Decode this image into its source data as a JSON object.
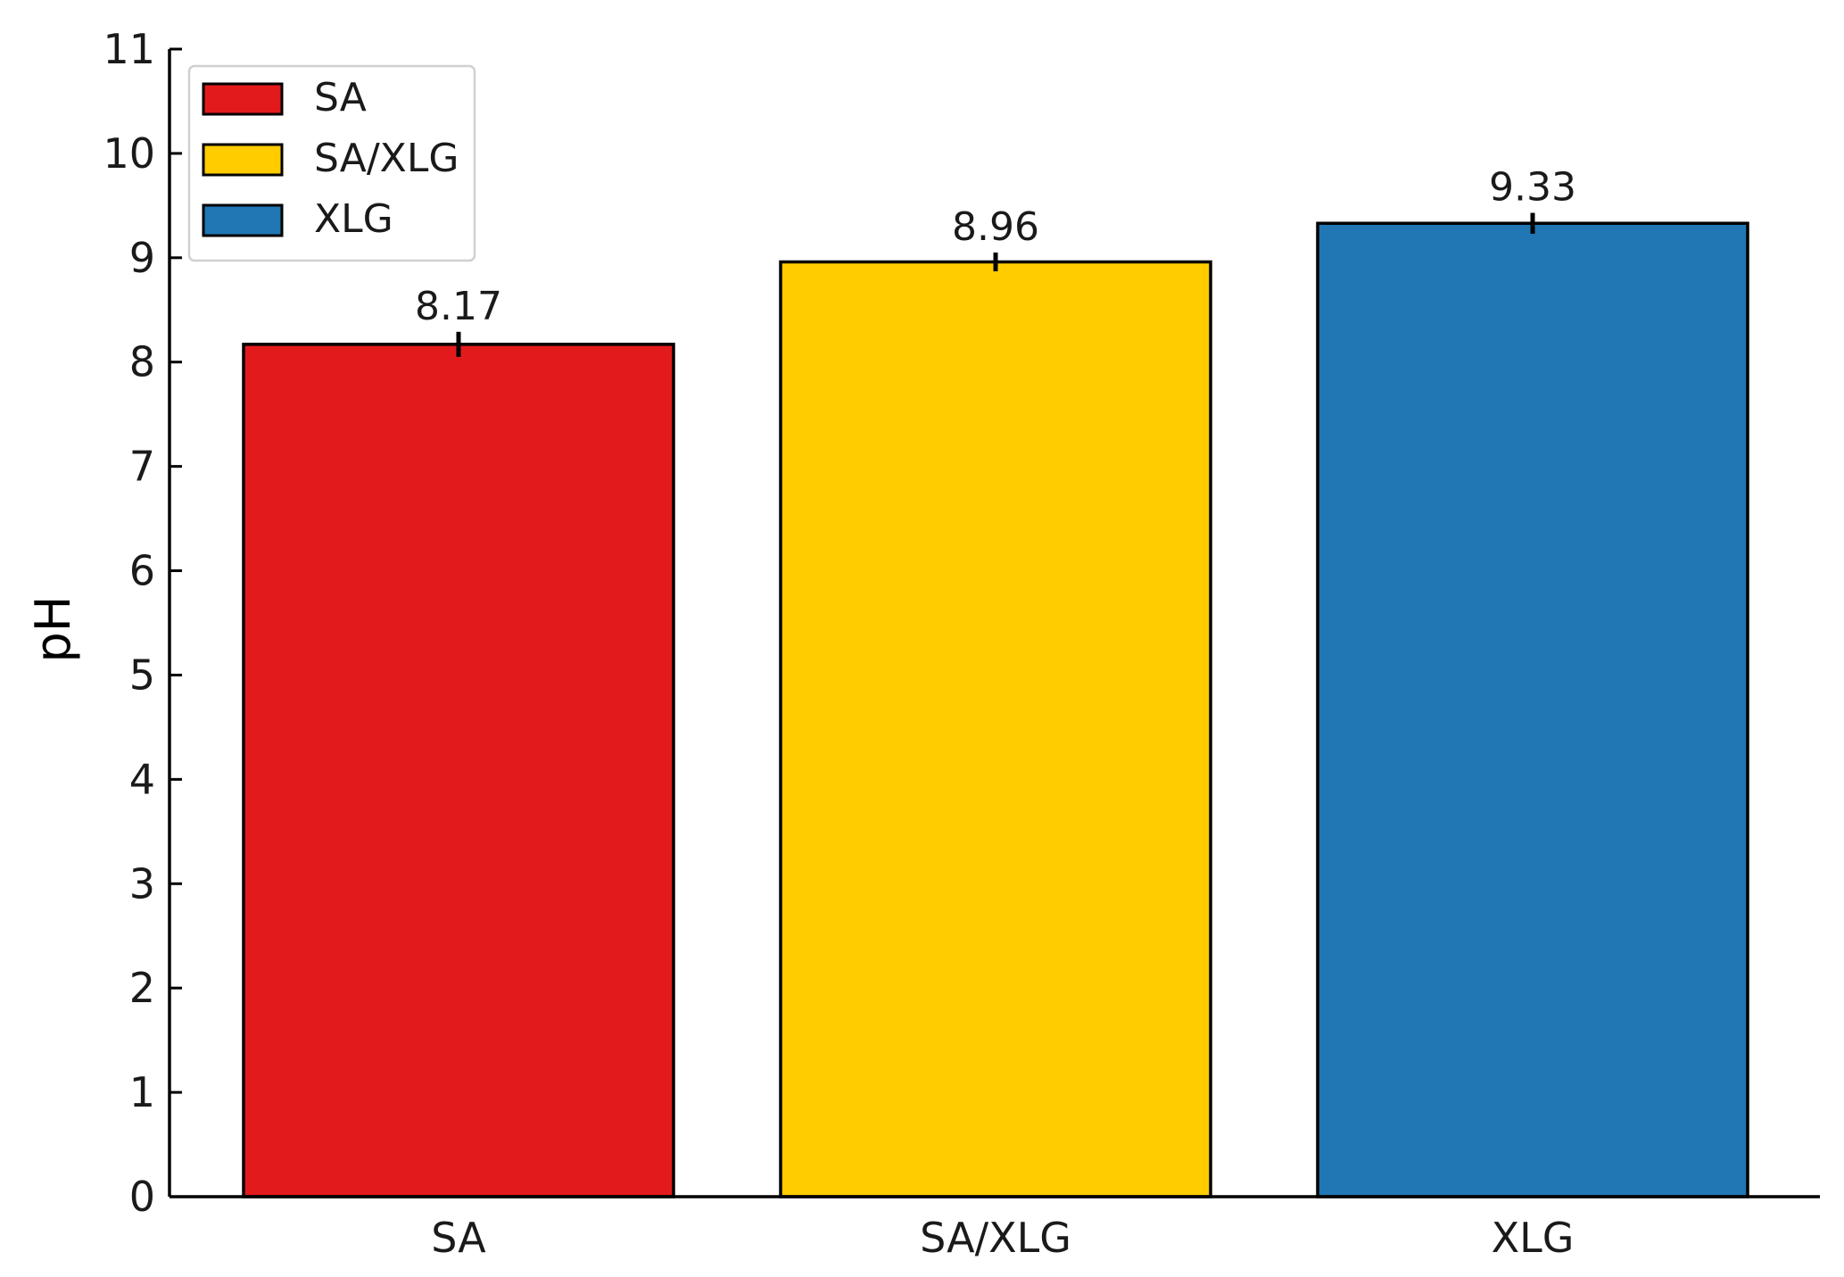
{
  "chart_data": {
    "type": "bar",
    "categories": [
      "SA",
      "SA/XLG",
      "XLG"
    ],
    "values": [
      8.17,
      8.96,
      9.33
    ],
    "errors": [
      0.12,
      0.09,
      0.1
    ],
    "value_labels": [
      "8.17",
      "8.96",
      "9.33"
    ],
    "colors": [
      "#e31a1c",
      "#ffcc00",
      "#2077b4"
    ],
    "ylabel": "pH",
    "xlabel": "",
    "ylim": [
      0,
      11
    ],
    "yticks": [
      0,
      1,
      2,
      3,
      4,
      5,
      6,
      7,
      8,
      9,
      10,
      11
    ],
    "grid": false,
    "legend": {
      "placement": "top-left",
      "entries": [
        "SA",
        "SA/XLG",
        "XLG"
      ]
    }
  }
}
